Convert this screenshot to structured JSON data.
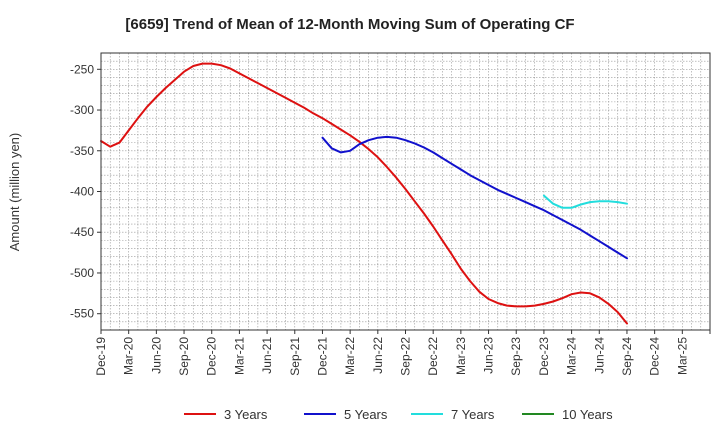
{
  "chart_data": {
    "type": "line",
    "title": "[6659]  Trend of Mean of 12-Month Moving Sum of Operating CF",
    "xlabel": "",
    "ylabel": "Amount (million yen)",
    "ylim": [
      -570,
      -230
    ],
    "yticks": [
      -250,
      -300,
      -350,
      -400,
      -450,
      -500,
      -550
    ],
    "x_range": [
      0,
      66
    ],
    "x_tick_positions": [
      0,
      3,
      6,
      9,
      12,
      15,
      18,
      21,
      24,
      27,
      30,
      33,
      36,
      39,
      42,
      45,
      48,
      51,
      54,
      57,
      60,
      63,
      66
    ],
    "x_tick_labels": [
      "Dec-19",
      "Mar-20",
      "Jun-20",
      "Sep-20",
      "Dec-20",
      "Mar-21",
      "Jun-21",
      "Sep-21",
      "Dec-21",
      "Mar-22",
      "Jun-22",
      "Sep-22",
      "Dec-22",
      "Mar-23",
      "Jun-23",
      "Sep-23",
      "Dec-23",
      "Mar-24",
      "Jun-24",
      "Sep-24",
      "Dec-24",
      "Mar-25"
    ],
    "x_label_index_note": "labels map to tick positions 0..63",
    "grid": true,
    "legend_position": "bottom",
    "series": [
      {
        "name": "3 Years",
        "color": "#dd1111",
        "x": [
          0,
          1,
          2,
          3,
          4,
          5,
          6,
          7,
          8,
          9,
          10,
          11,
          12,
          13,
          14,
          15,
          16,
          17,
          18,
          19,
          20,
          21,
          22,
          23,
          24,
          25,
          26,
          27,
          28,
          29,
          30,
          31,
          32,
          33,
          34,
          35,
          36,
          37,
          38,
          39,
          40,
          41,
          42,
          43,
          44,
          45,
          46,
          47,
          48,
          49,
          50,
          51,
          52,
          53,
          54,
          55,
          56,
          57
        ],
        "values": [
          -338,
          -345,
          -340,
          -325,
          -310,
          -296,
          -284,
          -273,
          -263,
          -253,
          -246,
          -243,
          -243,
          -245,
          -249,
          -255,
          -261,
          -267,
          -273,
          -279,
          -285,
          -291,
          -297,
          -304,
          -310,
          -317,
          -324,
          -331,
          -339,
          -348,
          -358,
          -370,
          -383,
          -397,
          -412,
          -427,
          -443,
          -460,
          -477,
          -495,
          -510,
          -523,
          -532,
          -537,
          -540,
          -541,
          -541,
          -540,
          -538,
          -535,
          -531,
          -526,
          -524,
          -525,
          -530,
          -538,
          -548,
          -562
        ]
      },
      {
        "name": "5 Years",
        "color": "#1111cc",
        "x": [
          24,
          25,
          26,
          27,
          28,
          29,
          30,
          31,
          32,
          33,
          34,
          35,
          36,
          37,
          38,
          39,
          40,
          41,
          42,
          43,
          44,
          45,
          46,
          47,
          48,
          49,
          50,
          51,
          52,
          53,
          54,
          55,
          56,
          57
        ],
        "values": [
          -334,
          -347,
          -352,
          -350,
          -342,
          -337,
          -334,
          -333,
          -334,
          -337,
          -341,
          -346,
          -352,
          -359,
          -366,
          -373,
          -380,
          -386,
          -392,
          -398,
          -403,
          -408,
          -413,
          -418,
          -423,
          -429,
          -435,
          -441,
          -447,
          -454,
          -461,
          -468,
          -475,
          -482
        ]
      },
      {
        "name": "7 Years",
        "color": "#22dddd",
        "x": [
          48,
          49,
          50,
          51,
          52,
          53,
          54,
          55,
          56,
          57
        ],
        "values": [
          -405,
          -415,
          -420,
          -420,
          -416,
          -413,
          -412,
          -412,
          -413,
          -415
        ]
      },
      {
        "name": "10 Years",
        "color": "#228822",
        "x": [],
        "values": []
      }
    ]
  }
}
